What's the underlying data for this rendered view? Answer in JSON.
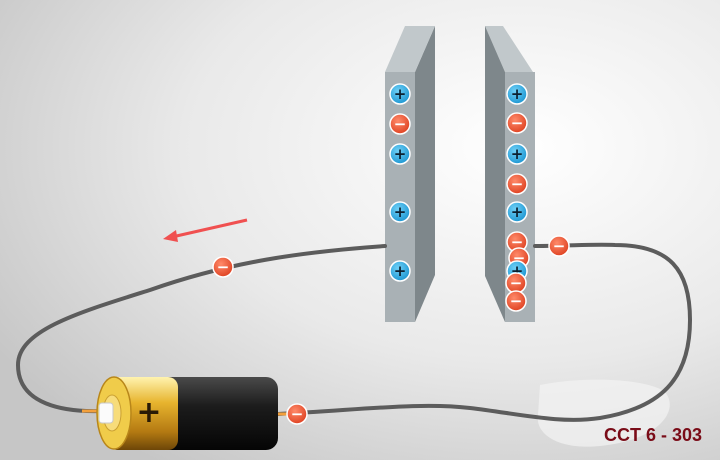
{
  "caption": {
    "code": "CCT 6 - 303"
  },
  "symbols": {
    "positive": "+",
    "negative": "−"
  },
  "battery": {
    "terminal_label": "+"
  },
  "colors": {
    "positive_charge": "#1fa3df",
    "negative_charge": "#ee5533",
    "plate_face": "#a9b1b5",
    "plate_side": "#7e878b",
    "wire": "#5c5c5c",
    "arrow": "#f05050",
    "caption": "#7a0c18"
  },
  "plates": {
    "left": {
      "charges": [
        "+",
        "-",
        "+",
        "+",
        "+"
      ]
    },
    "right": {
      "charges": [
        "+",
        "-",
        "+",
        "-",
        "+",
        "-",
        "-",
        "+",
        "-",
        "-"
      ]
    }
  },
  "wire_electrons": 3,
  "current_arrow": {
    "direction": "left"
  }
}
